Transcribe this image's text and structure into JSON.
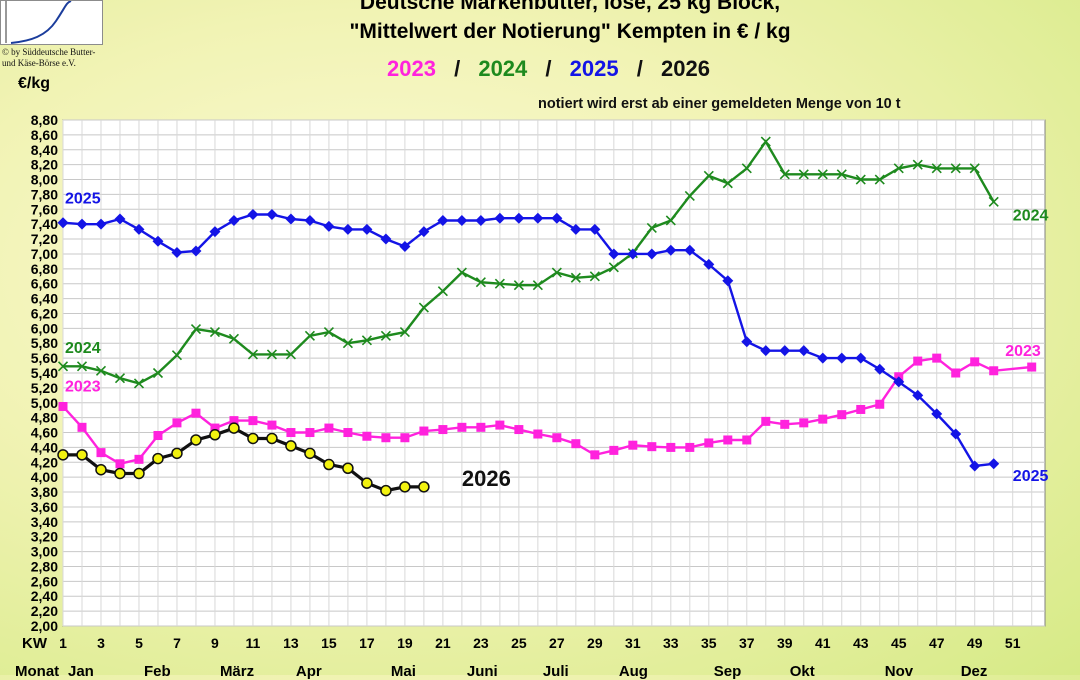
{
  "logo_caption": [
    "© by Süddeutsche Butter-",
    "und Käse-Börse e.V."
  ],
  "y_unit": "€/kg",
  "title_line1": "Deutsche Markenbutter, lose, 25 kg Block,",
  "title_line2": "\"Mittelwert der Notierung\" Kempten in € / kg",
  "year_legend": {
    "y2023": "2023",
    "y2024": "2024",
    "y2025": "2025",
    "y2026": "2026",
    "sep": "/"
  },
  "note": "notiert wird erst ab einer gemeldeten Menge von 10 t",
  "colors": {
    "y2023": "#ff22dd",
    "y2024": "#1e8a1e",
    "y2025": "#1414e6",
    "y2026": "#111111"
  },
  "chart_data": {
    "type": "line",
    "xlabel": "KW",
    "ylim": [
      2.0,
      8.8
    ],
    "xlim": [
      1,
      52
    ],
    "x_ticks": [
      1,
      3,
      5,
      7,
      9,
      11,
      13,
      15,
      17,
      19,
      21,
      23,
      25,
      27,
      29,
      31,
      33,
      35,
      37,
      39,
      41,
      43,
      45,
      47,
      49,
      51
    ],
    "y_ticks": [
      "2,00",
      "2,20",
      "2,40",
      "2,60",
      "2,80",
      "3,00",
      "3,20",
      "3,40",
      "3,60",
      "3,80",
      "4,00",
      "4,20",
      "4,40",
      "4,60",
      "4,80",
      "5,00",
      "5,20",
      "5,40",
      "5,60",
      "5,80",
      "6,00",
      "6,20",
      "6,40",
      "6,60",
      "6,80",
      "7,00",
      "7,20",
      "7,40",
      "7,60",
      "7,80",
      "8,00",
      "8,20",
      "8,40",
      "8,60",
      "8,80"
    ],
    "grid": true,
    "month_label": "Monat",
    "months": [
      {
        "label": "Jan",
        "week": 2
      },
      {
        "label": "Feb",
        "week": 6
      },
      {
        "label": "März",
        "week": 10
      },
      {
        "label": "Apr",
        "week": 14
      },
      {
        "label": "Mai",
        "week": 19
      },
      {
        "label": "Juni",
        "week": 23
      },
      {
        "label": "Juli",
        "week": 27
      },
      {
        "label": "Aug",
        "week": 31
      },
      {
        "label": "Sep",
        "week": 36
      },
      {
        "label": "Okt",
        "week": 40
      },
      {
        "label": "Nov",
        "week": 45
      },
      {
        "label": "Dez",
        "week": 49
      }
    ],
    "series": [
      {
        "name": "2023",
        "color": "#ff22dd",
        "marker": "square",
        "x": [
          1,
          2,
          3,
          4,
          5,
          6,
          7,
          8,
          9,
          10,
          11,
          12,
          13,
          14,
          15,
          16,
          17,
          18,
          19,
          20,
          21,
          22,
          23,
          24,
          25,
          26,
          27,
          28,
          29,
          30,
          31,
          32,
          33,
          34,
          35,
          36,
          37,
          38,
          39,
          40,
          41,
          42,
          43,
          44,
          45,
          46,
          47,
          48,
          49,
          50,
          52
        ],
        "values": [
          4.95,
          4.67,
          4.33,
          4.18,
          4.24,
          4.56,
          4.73,
          4.86,
          4.66,
          4.76,
          4.76,
          4.7,
          4.6,
          4.6,
          4.66,
          4.6,
          4.55,
          4.53,
          4.53,
          4.62,
          4.64,
          4.67,
          4.67,
          4.7,
          4.64,
          4.58,
          4.53,
          4.45,
          4.3,
          4.36,
          4.43,
          4.41,
          4.4,
          4.4,
          4.46,
          4.5,
          4.5,
          4.75,
          4.71,
          4.73,
          4.78,
          4.84,
          4.91,
          4.98,
          5.35,
          5.56,
          5.6,
          5.4,
          5.55,
          5.43,
          5.48
        ],
        "labels": [
          {
            "text": "2023",
            "x": 1,
            "y": 5.15
          },
          {
            "text": "2023",
            "x": 50.5,
            "y": 5.63
          }
        ]
      },
      {
        "name": "2024",
        "color": "#1e8a1e",
        "marker": "x",
        "x": [
          1,
          2,
          3,
          4,
          5,
          6,
          7,
          8,
          9,
          10,
          11,
          12,
          13,
          14,
          15,
          16,
          17,
          18,
          19,
          20,
          21,
          22,
          23,
          24,
          25,
          26,
          27,
          28,
          29,
          30,
          31,
          32,
          33,
          34,
          35,
          36,
          37,
          38,
          39,
          40,
          41,
          42,
          43,
          44,
          45,
          46,
          47,
          48,
          49,
          50
        ],
        "values": [
          5.49,
          5.49,
          5.43,
          5.33,
          5.26,
          5.4,
          5.64,
          5.99,
          5.95,
          5.86,
          5.65,
          5.65,
          5.65,
          5.9,
          5.95,
          5.8,
          5.84,
          5.9,
          5.95,
          6.28,
          6.5,
          6.75,
          6.62,
          6.6,
          6.58,
          6.58,
          6.75,
          6.68,
          6.7,
          6.82,
          7.01,
          7.35,
          7.45,
          7.78,
          8.05,
          7.95,
          8.15,
          8.51,
          8.07,
          8.07,
          8.07,
          8.07,
          8.0,
          8.0,
          8.15,
          8.2,
          8.15,
          8.15,
          8.15,
          7.7
        ],
        "labels": [
          {
            "text": "2024",
            "x": 1,
            "y": 5.67
          },
          {
            "text": "2024",
            "x": 50.9,
            "y": 7.45
          }
        ]
      },
      {
        "name": "2025",
        "color": "#1414e6",
        "marker": "diamond",
        "x": [
          1,
          2,
          3,
          4,
          5,
          6,
          7,
          8,
          9,
          10,
          11,
          12,
          13,
          14,
          15,
          16,
          17,
          18,
          19,
          20,
          21,
          22,
          23,
          24,
          25,
          26,
          27,
          28,
          29,
          30,
          31,
          32,
          33,
          34,
          35,
          36,
          37,
          38,
          39,
          40,
          41,
          42,
          43,
          44,
          45,
          46,
          47,
          48,
          49,
          50
        ],
        "values": [
          7.42,
          7.4,
          7.4,
          7.47,
          7.33,
          7.17,
          7.02,
          7.04,
          7.3,
          7.45,
          7.53,
          7.53,
          7.47,
          7.45,
          7.37,
          7.33,
          7.33,
          7.2,
          7.1,
          7.3,
          7.45,
          7.45,
          7.45,
          7.48,
          7.48,
          7.48,
          7.48,
          7.33,
          7.33,
          7.0,
          7.0,
          7.0,
          7.05,
          7.05,
          6.86,
          6.64,
          5.82,
          5.7,
          5.7,
          5.7,
          5.6,
          5.6,
          5.6,
          5.45,
          5.28,
          5.1,
          4.85,
          4.58,
          4.15,
          4.18
        ],
        "labels": [
          {
            "text": "2025",
            "x": 1,
            "y": 7.68
          },
          {
            "text": "2025",
            "x": 50.9,
            "y": 3.95
          }
        ]
      },
      {
        "name": "2026",
        "color": "#111111",
        "marker": "circle",
        "x": [
          1,
          2,
          3,
          4,
          5,
          6,
          7,
          8,
          9,
          10,
          11,
          12,
          13,
          14,
          15,
          16,
          17,
          18,
          19,
          20
        ],
        "values": [
          4.3,
          4.3,
          4.1,
          4.05,
          4.05,
          4.25,
          4.32,
          4.5,
          4.57,
          4.66,
          4.52,
          4.52,
          4.42,
          4.32,
          4.17,
          4.12,
          3.92,
          3.82,
          3.87,
          3.87
        ],
        "labels": [
          {
            "text": "2026",
            "x": 22,
            "y": 3.88
          }
        ]
      }
    ]
  }
}
